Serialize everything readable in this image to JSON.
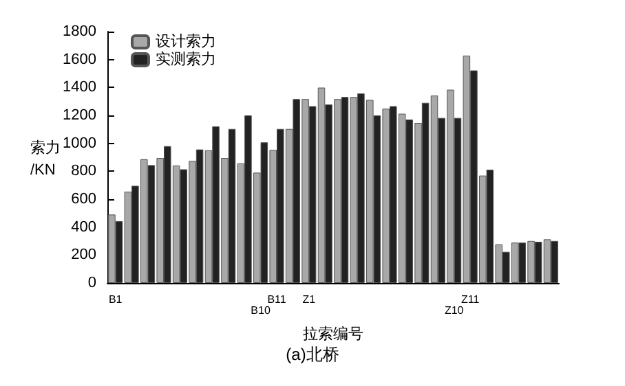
{
  "chart_data": {
    "type": "bar",
    "title": "(a)北桥",
    "xlabel": "拉索编号",
    "ylabel": "索力\n/KN",
    "categories": [
      "B1",
      null,
      null,
      null,
      null,
      null,
      null,
      null,
      null,
      "B10",
      "B11",
      null,
      "Z1",
      null,
      null,
      null,
      null,
      null,
      null,
      null,
      null,
      "Z10",
      "Z11",
      null,
      null,
      null,
      null,
      null
    ],
    "series": [
      {
        "name": "设计索力",
        "color": "#a8a8a8",
        "values": [
          490,
          654,
          886,
          895,
          841,
          874,
          950,
          895,
          856,
          790,
          953,
          1103,
          1317,
          1399,
          1317,
          1332,
          1311,
          1248,
          1212,
          1146,
          1342,
          1384,
          1628,
          769,
          277,
          289,
          301,
          313
        ]
      },
      {
        "name": "实测索力",
        "color": "#222222",
        "values": [
          443,
          696,
          844,
          980,
          814,
          956,
          1121,
          1103,
          1200,
          1007,
          1103,
          1317,
          1266,
          1278,
          1332,
          1357,
          1200,
          1266,
          1170,
          1290,
          1182,
          1182,
          1522,
          811,
          223,
          289,
          295,
          301
        ]
      }
    ],
    "ylim": [
      0,
      1800
    ],
    "yticks": [
      0,
      200,
      400,
      600,
      800,
      1000,
      1200,
      1400,
      1600,
      1800
    ],
    "grid": false,
    "legend": "top left"
  }
}
